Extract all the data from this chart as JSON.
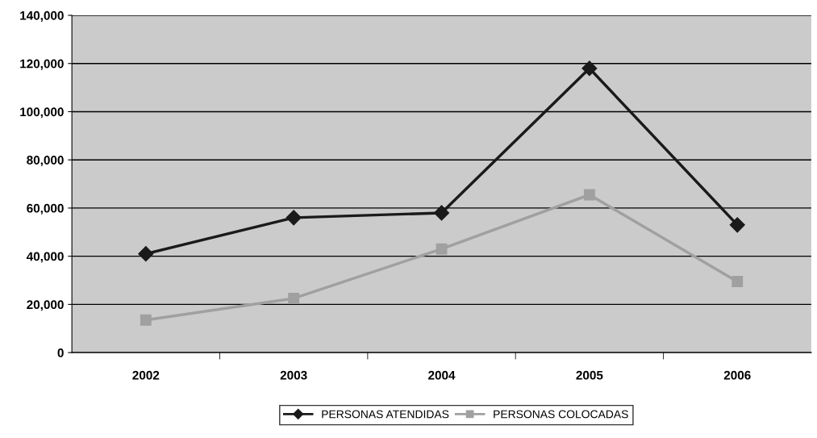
{
  "chart_data": {
    "type": "line",
    "categories": [
      "2002",
      "2003",
      "2004",
      "2005",
      "2006"
    ],
    "series": [
      {
        "name": "PERSONAS ATENDIDAS",
        "color": "#1a1a1a",
        "marker": "diamond",
        "values": [
          41000,
          56000,
          58000,
          118000,
          53000
        ]
      },
      {
        "name": "PERSONAS COLOCADAS",
        "color": "#a0a0a0",
        "marker": "square",
        "values": [
          13500,
          22500,
          43000,
          65500,
          29500
        ]
      }
    ],
    "ylim": [
      0,
      140000
    ],
    "yticks": [
      {
        "value": 0,
        "label": "0"
      },
      {
        "value": 20000,
        "label": "20,000"
      },
      {
        "value": 40000,
        "label": "40,000"
      },
      {
        "value": 60000,
        "label": "60,000"
      },
      {
        "value": 80000,
        "label": "80,000"
      },
      {
        "value": 100000,
        "label": "100,000"
      },
      {
        "value": 120000,
        "label": "120,000"
      },
      {
        "value": 140000,
        "label": "140,000"
      }
    ],
    "grid": "y",
    "legend": "bottom"
  }
}
